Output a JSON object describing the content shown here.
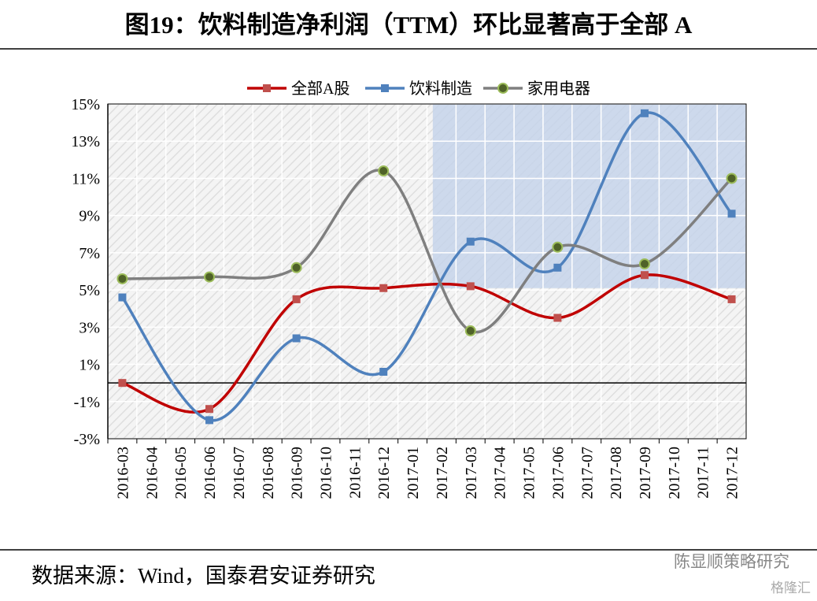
{
  "chart_data": {
    "type": "line",
    "title": "图19：饮料制造净利润（TTM）环比显著高于全部 A",
    "source": "数据来源：Wind，国泰君安证券研究",
    "watermark": "陈显顺策略研究",
    "watermark2": "格隆汇",
    "categories": [
      "2016-03",
      "2016-04",
      "2016-05",
      "2016-06",
      "2016-07",
      "2016-08",
      "2016-09",
      "2016-10",
      "2016-11",
      "2016-12",
      "2017-01",
      "2017-02",
      "2017-03",
      "2017-04",
      "2017-05",
      "2017-06",
      "2017-07",
      "2017-08",
      "2017-09",
      "2017-10",
      "2017-11",
      "2017-12"
    ],
    "span_gaps": true,
    "smooth": true,
    "series": [
      {
        "name": "全部A股",
        "color": "#c00000",
        "marker": "square",
        "marker_color": "#c0504d",
        "values": [
          0.0,
          null,
          null,
          -1.4,
          null,
          null,
          4.5,
          null,
          null,
          5.1,
          null,
          null,
          5.2,
          null,
          null,
          3.5,
          null,
          null,
          5.8,
          null,
          null,
          4.5
        ]
      },
      {
        "name": "饮料制造",
        "color": "#4f81bd",
        "marker": "square",
        "marker_color": "#4f81bd",
        "values": [
          4.6,
          null,
          null,
          -2.0,
          null,
          null,
          2.4,
          null,
          null,
          0.6,
          null,
          null,
          7.6,
          null,
          null,
          6.2,
          null,
          null,
          14.5,
          null,
          null,
          9.1
        ]
      },
      {
        "name": "家用电器",
        "color": "#7f7f7f",
        "marker": "circle",
        "marker_color": "#4f6228",
        "values": [
          5.6,
          null,
          null,
          5.7,
          null,
          null,
          6.2,
          null,
          null,
          11.4,
          null,
          null,
          2.8,
          null,
          null,
          7.3,
          null,
          null,
          6.4,
          null,
          null,
          11.0
        ]
      }
    ],
    "ylim": [
      -3,
      15
    ],
    "yticks": [
      {
        "value": -3,
        "label": "-3%"
      },
      {
        "value": -1,
        "label": "-1%"
      },
      {
        "value": 1,
        "label": "1%"
      },
      {
        "value": 3,
        "label": "3%"
      },
      {
        "value": 5,
        "label": "5%"
      },
      {
        "value": 7,
        "label": "7%"
      },
      {
        "value": 9,
        "label": "9%"
      },
      {
        "value": 11,
        "label": "11%"
      },
      {
        "value": 13,
        "label": "13%"
      },
      {
        "value": 15,
        "label": "15%"
      }
    ],
    "grid": true,
    "legend": "top",
    "highlight": {
      "x_from": "2017-02",
      "x_to": "2017-12",
      "y_from": 5.1,
      "y_to": 15,
      "color": "#c6d4ea"
    }
  }
}
